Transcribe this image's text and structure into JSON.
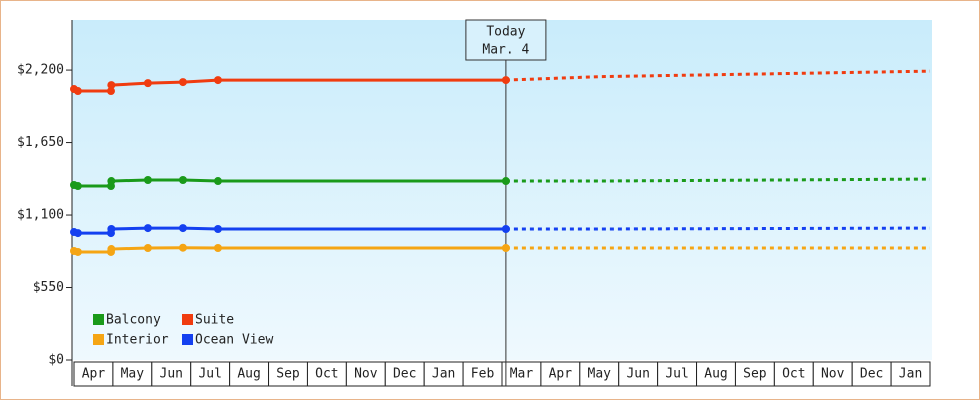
{
  "chart_data": {
    "type": "line",
    "categories": [
      "Apr",
      "May",
      "Jun",
      "Jul",
      "Aug",
      "Sep",
      "Oct",
      "Nov",
      "Dec",
      "Jan",
      "Feb",
      "Mar",
      "Apr",
      "May",
      "Jun",
      "Jul",
      "Aug",
      "Sep",
      "Oct",
      "Nov",
      "Dec",
      "Jan"
    ],
    "xlim": [
      0,
      22
    ],
    "ylim": [
      0,
      2580
    ],
    "yticks": [
      {
        "value": 0,
        "label": "$0"
      },
      {
        "value": 550,
        "label": "$550"
      },
      {
        "value": 1100,
        "label": "$1,100"
      },
      {
        "value": 1650,
        "label": "$1,650"
      },
      {
        "value": 2200,
        "label": "$2,200"
      }
    ],
    "x": [
      0,
      0.1,
      0.95,
      0.96,
      1.9,
      2.8,
      3.7,
      11.1
    ],
    "forecast_x": [
      11.1,
      13.5,
      22
    ],
    "annotation": {
      "x": 11.1,
      "lines": [
        "Today",
        "Mar. 4"
      ]
    },
    "legend": "bottom-left",
    "series": [
      {
        "name": "Balcony",
        "color": "#1a9a1a",
        "values": [
          1328,
          1320,
          1320,
          1358,
          1366,
          1366,
          1358,
          1358
        ],
        "forecast": [
          1358,
          1358,
          1373
        ]
      },
      {
        "name": "Suite",
        "color": "#f03c10",
        "values": [
          2056,
          2041,
          2041,
          2086,
          2101,
          2109,
          2124,
          2124
        ],
        "forecast": [
          2124,
          2150,
          2192
        ]
      },
      {
        "name": "Interior",
        "color": "#f5a514",
        "values": [
          827,
          820,
          820,
          842,
          850,
          852,
          850,
          850
        ],
        "forecast": [
          850,
          850,
          850
        ]
      },
      {
        "name": "Ocean View",
        "color": "#1440f0",
        "values": [
          971,
          963,
          963,
          994,
          1001,
          1001,
          994,
          994
        ],
        "forecast": [
          994,
          994,
          1001
        ]
      }
    ]
  }
}
